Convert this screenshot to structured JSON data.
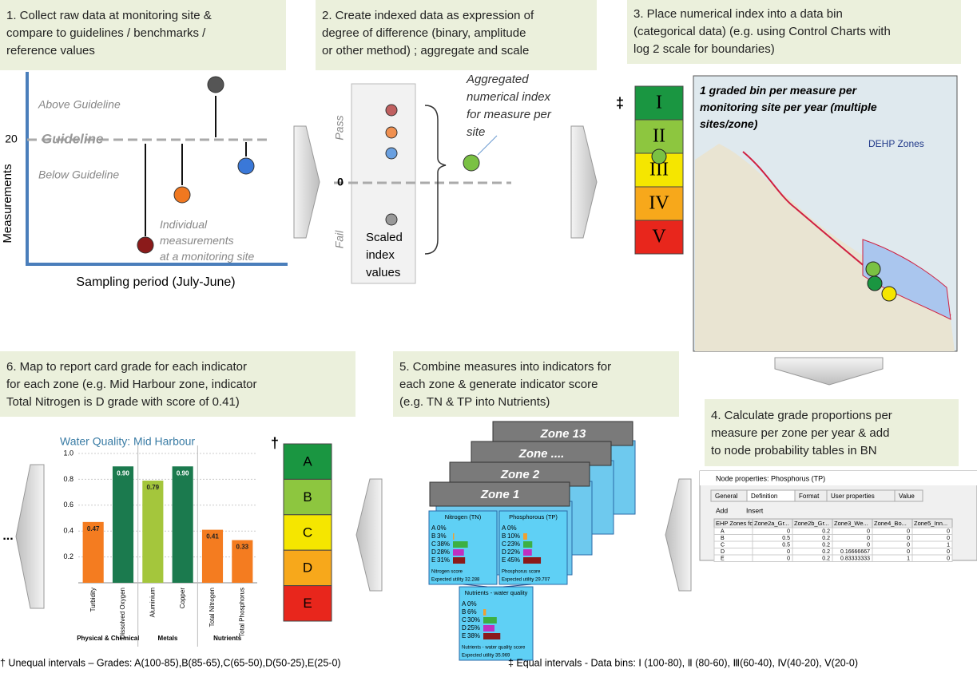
{
  "steps": [
    {
      "lines": [
        "1. Collect raw data at monitoring site &",
        "compare to guidelines / benchmarks /",
        "reference values"
      ]
    },
    {
      "lines": [
        "2. Create indexed data as expression of",
        "degree of difference (binary, amplitude",
        "or other method) ; aggregate and scale"
      ]
    },
    {
      "lines": [
        "3. Place numerical index into a data bin",
        "(categorical data) (e.g. using Control Charts with",
        "log 2 scale for boundaries)"
      ]
    },
    {
      "lines": [
        "4. Calculate grade proportions per",
        "measure per zone per year & add",
        "to node probability tables in BN"
      ]
    },
    {
      "lines": [
        "5. Combine measures into indicators for",
        "each zone & generate indicator score",
        "(e.g. TN & TP into Nutrients)"
      ]
    },
    {
      "lines": [
        "6. Map to report card grade for each indicator",
        "for each zone (e.g. Mid Harbour zone, indicator",
        "Total Nitrogen is D grade with score of 0.41)"
      ]
    }
  ],
  "panel1": {
    "above": "Above Guideline",
    "guideline": "Guideline",
    "below": "Below Guideline",
    "value": "20",
    "y_label": "Measurements",
    "x_label": "Sampling period (July-June)",
    "note": [
      "Individual",
      "measurements",
      "at a monitoring site"
    ]
  },
  "panel2": {
    "pass": "Pass",
    "fail": "Fail",
    "zero": "0",
    "aggregated": [
      "Aggregated",
      "numerical index",
      "for measure per",
      "site"
    ],
    "scaled": [
      "Scaled",
      "index",
      "values"
    ]
  },
  "panel3": {
    "symbol": "‡",
    "bins": [
      "I",
      "II",
      "III",
      "IV",
      "V"
    ],
    "map_note": [
      "1 graded bin per measure per",
      "monitoring site per year (multiple",
      "sites/zone)"
    ],
    "map_label": "DEHP Zones"
  },
  "panel4": {
    "window_title": "Node properties: Phosphorus (TP)",
    "tabs": [
      "General",
      "Definition",
      "Format",
      "User properties",
      "Value"
    ],
    "toolbar": [
      "Add",
      "Insert"
    ],
    "table": {
      "header": [
        "EHP Zones for...",
        "Zone2a_Gr...",
        "Zone2b_Gr...",
        "Zone3_We...",
        "Zone4_Bo...",
        "Zone5_Inn..."
      ],
      "rows": [
        [
          "A",
          0,
          0.2,
          0,
          0,
          0
        ],
        [
          "B",
          0.5,
          0.2,
          0,
          0,
          0
        ],
        [
          "C",
          0.5,
          0.2,
          0,
          0,
          1
        ],
        [
          "D",
          0,
          0.2,
          0.16666667,
          0,
          0
        ],
        [
          "E",
          0,
          0.2,
          0.83333333,
          1,
          0
        ]
      ]
    }
  },
  "panel5": {
    "zones": [
      "Zone 13",
      "Zone ....",
      "Zone 2",
      "Zone 1"
    ],
    "nodes": [
      {
        "title": "Nitrogen (TN)",
        "rows": [
          {
            "grade": "A",
            "value": 0,
            "label": "0%"
          },
          {
            "grade": "B",
            "value": 3,
            "label": "3%"
          },
          {
            "grade": "C",
            "value": 38,
            "label": "38%"
          },
          {
            "grade": "D",
            "value": 28,
            "label": "28%"
          },
          {
            "grade": "E",
            "value": 31,
            "label": "31%"
          }
        ],
        "footer": "Nitrogen score",
        "utility": "Expected utility 32.288"
      },
      {
        "title": "Phosphorous (TP)",
        "rows": [
          {
            "grade": "A",
            "value": 0,
            "label": "0%"
          },
          {
            "grade": "B",
            "value": 10,
            "label": "10%"
          },
          {
            "grade": "C",
            "value": 23,
            "label": "23%"
          },
          {
            "grade": "D",
            "value": 22,
            "label": "22%"
          },
          {
            "grade": "E",
            "value": 45,
            "label": "45%"
          }
        ],
        "footer": "Phosphorus score",
        "utility": "Expected utility 29.707"
      },
      {
        "title": "Nutrients - water quality",
        "rows": [
          {
            "grade": "A",
            "value": 0,
            "label": "0%"
          },
          {
            "grade": "B",
            "value": 6,
            "label": "6%"
          },
          {
            "grade": "C",
            "value": 30,
            "label": "30%"
          },
          {
            "grade": "D",
            "value": 25,
            "label": "25%"
          },
          {
            "grade": "E",
            "value": 38,
            "label": "38%"
          }
        ],
        "footer": "Nutrients - water quality score",
        "utility": "Expected utility 35.969"
      }
    ]
  },
  "panel6": {
    "symbol": "†",
    "grades": [
      "A",
      "B",
      "C",
      "D",
      "E"
    ],
    "ellipsis": "...",
    "chart_data": {
      "type": "bar",
      "title": "Water Quality: Mid Harbour",
      "categories": [
        "Turbidity",
        "Dissolved Oxygen",
        "Aluminium",
        "Copper",
        "Total Nitrogen",
        "Total Phosphorus"
      ],
      "values": [
        0.47,
        0.9,
        0.79,
        0.9,
        0.41,
        0.33
      ],
      "value_labels": [
        "0.47",
        "0.90",
        "0.79",
        "0.90",
        "0.41",
        "0.33"
      ],
      "colors": [
        "#f47c20",
        "#1b7a4e",
        "#a4c63c",
        "#1b7a4e",
        "#f47c20",
        "#f47c20"
      ],
      "groups": [
        {
          "name": "Physical & Chemical",
          "count": 2
        },
        {
          "name": "Metals",
          "count": 2
        },
        {
          "name": "Nutrients",
          "count": 2
        }
      ],
      "ylim": [
        0,
        1
      ],
      "yticks": [
        0.2,
        0.4,
        0.6,
        0.8,
        {
          "value": 1,
          "label": "1.0"
        }
      ],
      "grid": true
    }
  },
  "footnotes": [
    "† Unequal intervals – Grades: A(100-85),B(85-65),C(65-50),D(50-25),E(25-0)",
    "‡ Equal intervals - Data bins: Ⅰ (100-80), Ⅱ (80-60),  Ⅲ(60-40), Ⅳ(40-20), Ⅴ(20-0)"
  ]
}
